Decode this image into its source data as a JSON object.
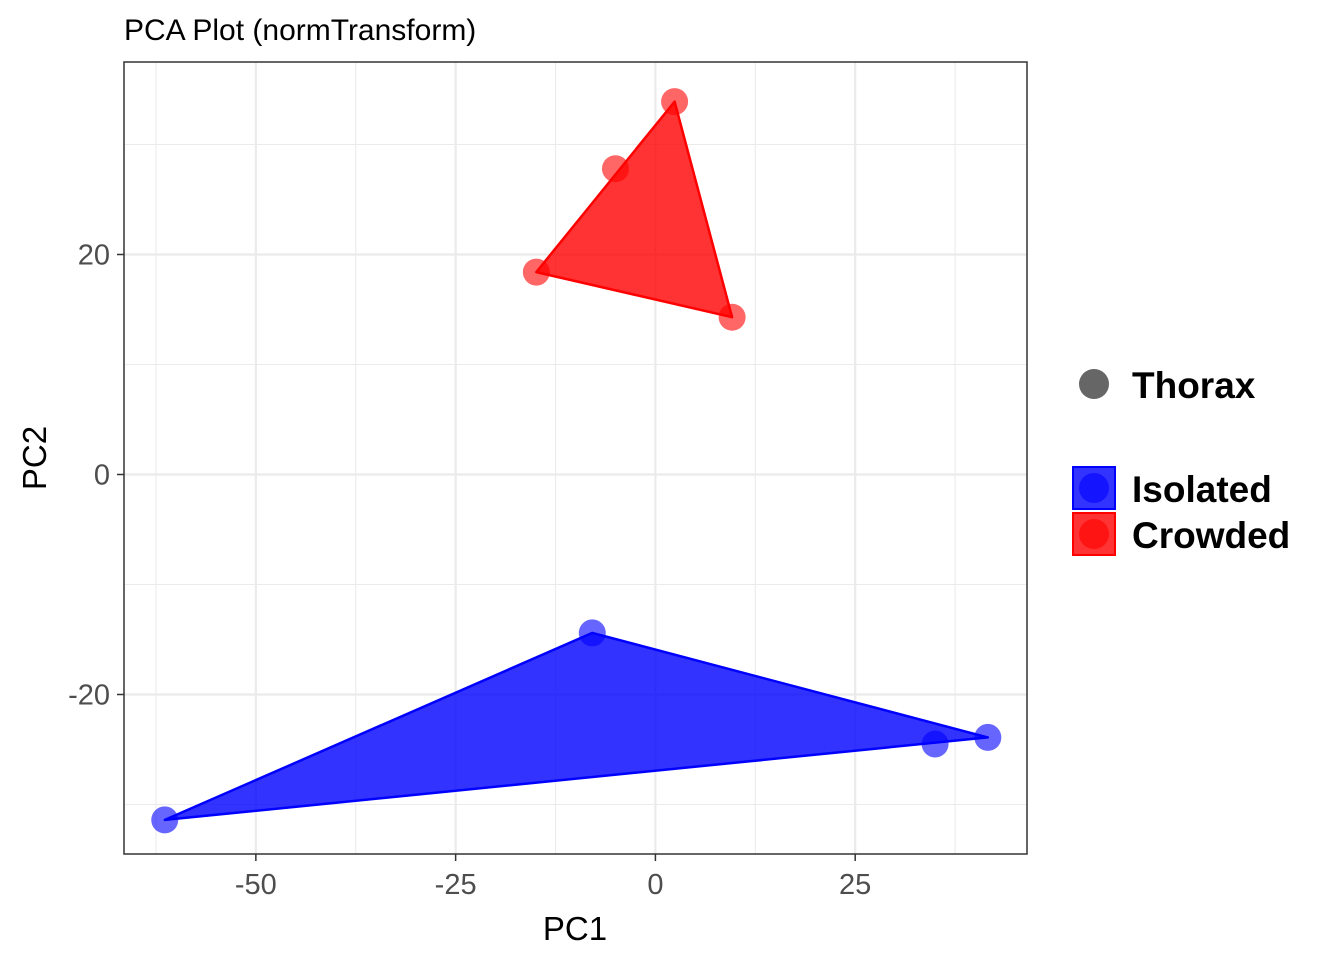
{
  "chart_data": {
    "type": "scatter",
    "title": "PCA Plot (normTransform)",
    "xlabel": "PC1",
    "ylabel": "PC2",
    "xlim": [
      -66.5,
      46.5
    ],
    "ylim": [
      -34.5,
      37.5
    ],
    "x_ticks": [
      -50,
      -25,
      0,
      25
    ],
    "y_ticks": [
      -20,
      0,
      20
    ],
    "grid": true,
    "legend_position": "right",
    "shape_legend": [
      {
        "label": "Thorax",
        "color": "#666666"
      }
    ],
    "series": [
      {
        "name": "Isolated",
        "color": "#0000ff",
        "points": [
          {
            "x": -61.4,
            "y": -31.4
          },
          {
            "x": -7.9,
            "y": -14.4
          },
          {
            "x": 35.0,
            "y": -24.5
          },
          {
            "x": 41.6,
            "y": -23.9
          }
        ],
        "hull": [
          {
            "x": -61.4,
            "y": -31.4
          },
          {
            "x": -7.9,
            "y": -14.4
          },
          {
            "x": 41.6,
            "y": -23.9
          }
        ]
      },
      {
        "name": "Crowded",
        "color": "#ff0000",
        "points": [
          {
            "x": 2.4,
            "y": 33.9
          },
          {
            "x": -5.0,
            "y": 27.8
          },
          {
            "x": -14.9,
            "y": 18.4
          },
          {
            "x": 9.6,
            "y": 14.3
          }
        ],
        "hull": [
          {
            "x": 2.4,
            "y": 33.9
          },
          {
            "x": -14.9,
            "y": 18.4
          },
          {
            "x": 9.6,
            "y": 14.3
          }
        ]
      }
    ]
  }
}
